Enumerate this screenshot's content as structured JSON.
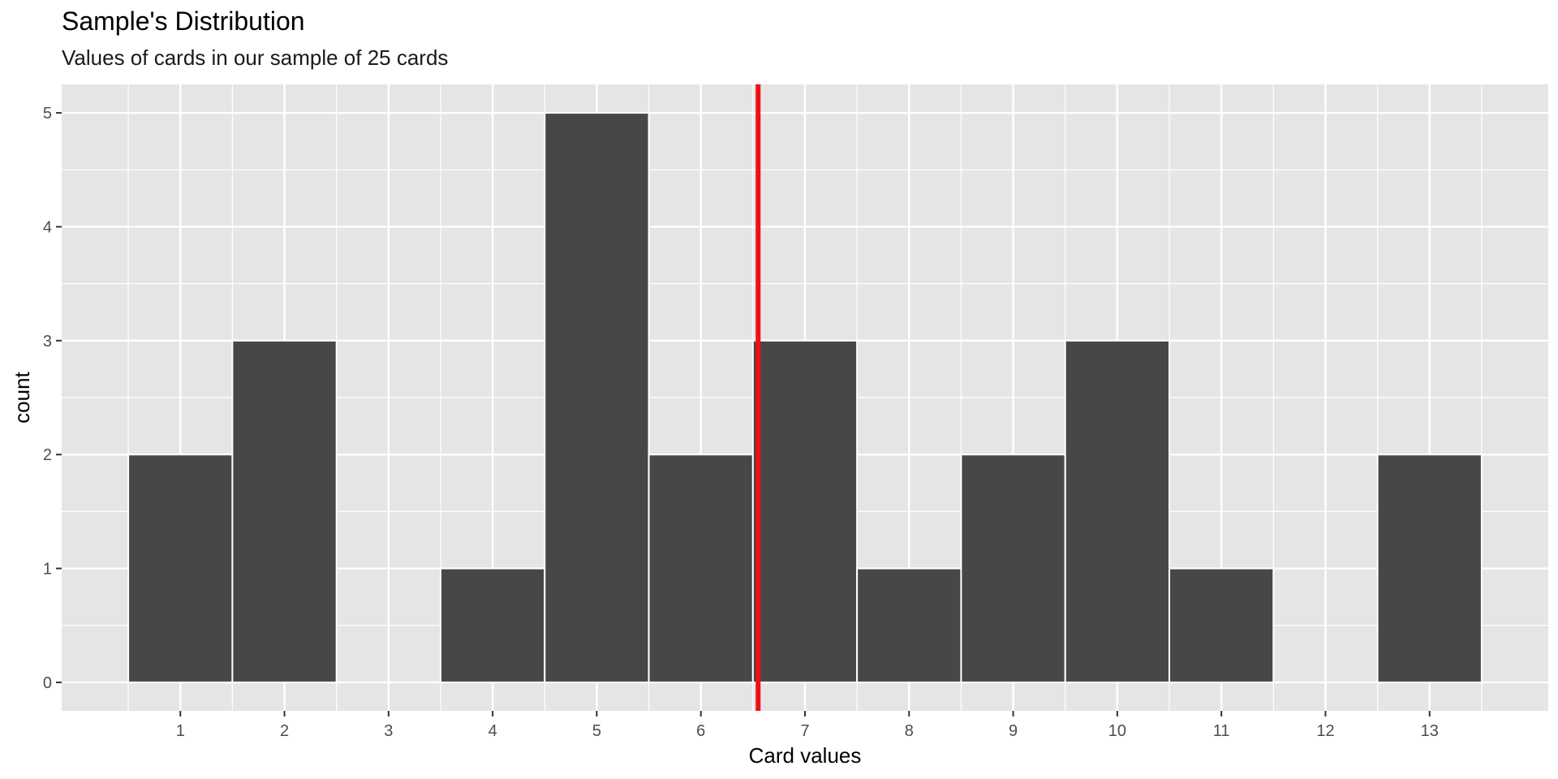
{
  "chart_data": {
    "type": "bar",
    "title": "Sample's Distribution",
    "subtitle": "Values of cards in our sample of 25 cards",
    "xlabel": "Card values",
    "ylabel": "count",
    "x": [
      1,
      2,
      3,
      4,
      5,
      6,
      7,
      8,
      9,
      10,
      11,
      12,
      13
    ],
    "values": [
      2,
      3,
      0,
      1,
      5,
      2,
      3,
      1,
      2,
      3,
      1,
      0,
      2
    ],
    "x_ticks": [
      1,
      2,
      3,
      4,
      5,
      6,
      7,
      8,
      9,
      10,
      11,
      12,
      13
    ],
    "y_ticks": [
      0,
      1,
      2,
      3,
      4,
      5
    ],
    "xlim": [
      -0.14,
      14.14
    ],
    "ylim": [
      -0.25,
      5.25
    ],
    "grid": true,
    "reference_line": {
      "x": 6.55,
      "color": "#ee1111"
    },
    "colors": {
      "bar_fill": "#474747",
      "bar_outline": "#ffffff",
      "panel_background": "#e5e5e5",
      "grid": "#ffffff"
    }
  }
}
